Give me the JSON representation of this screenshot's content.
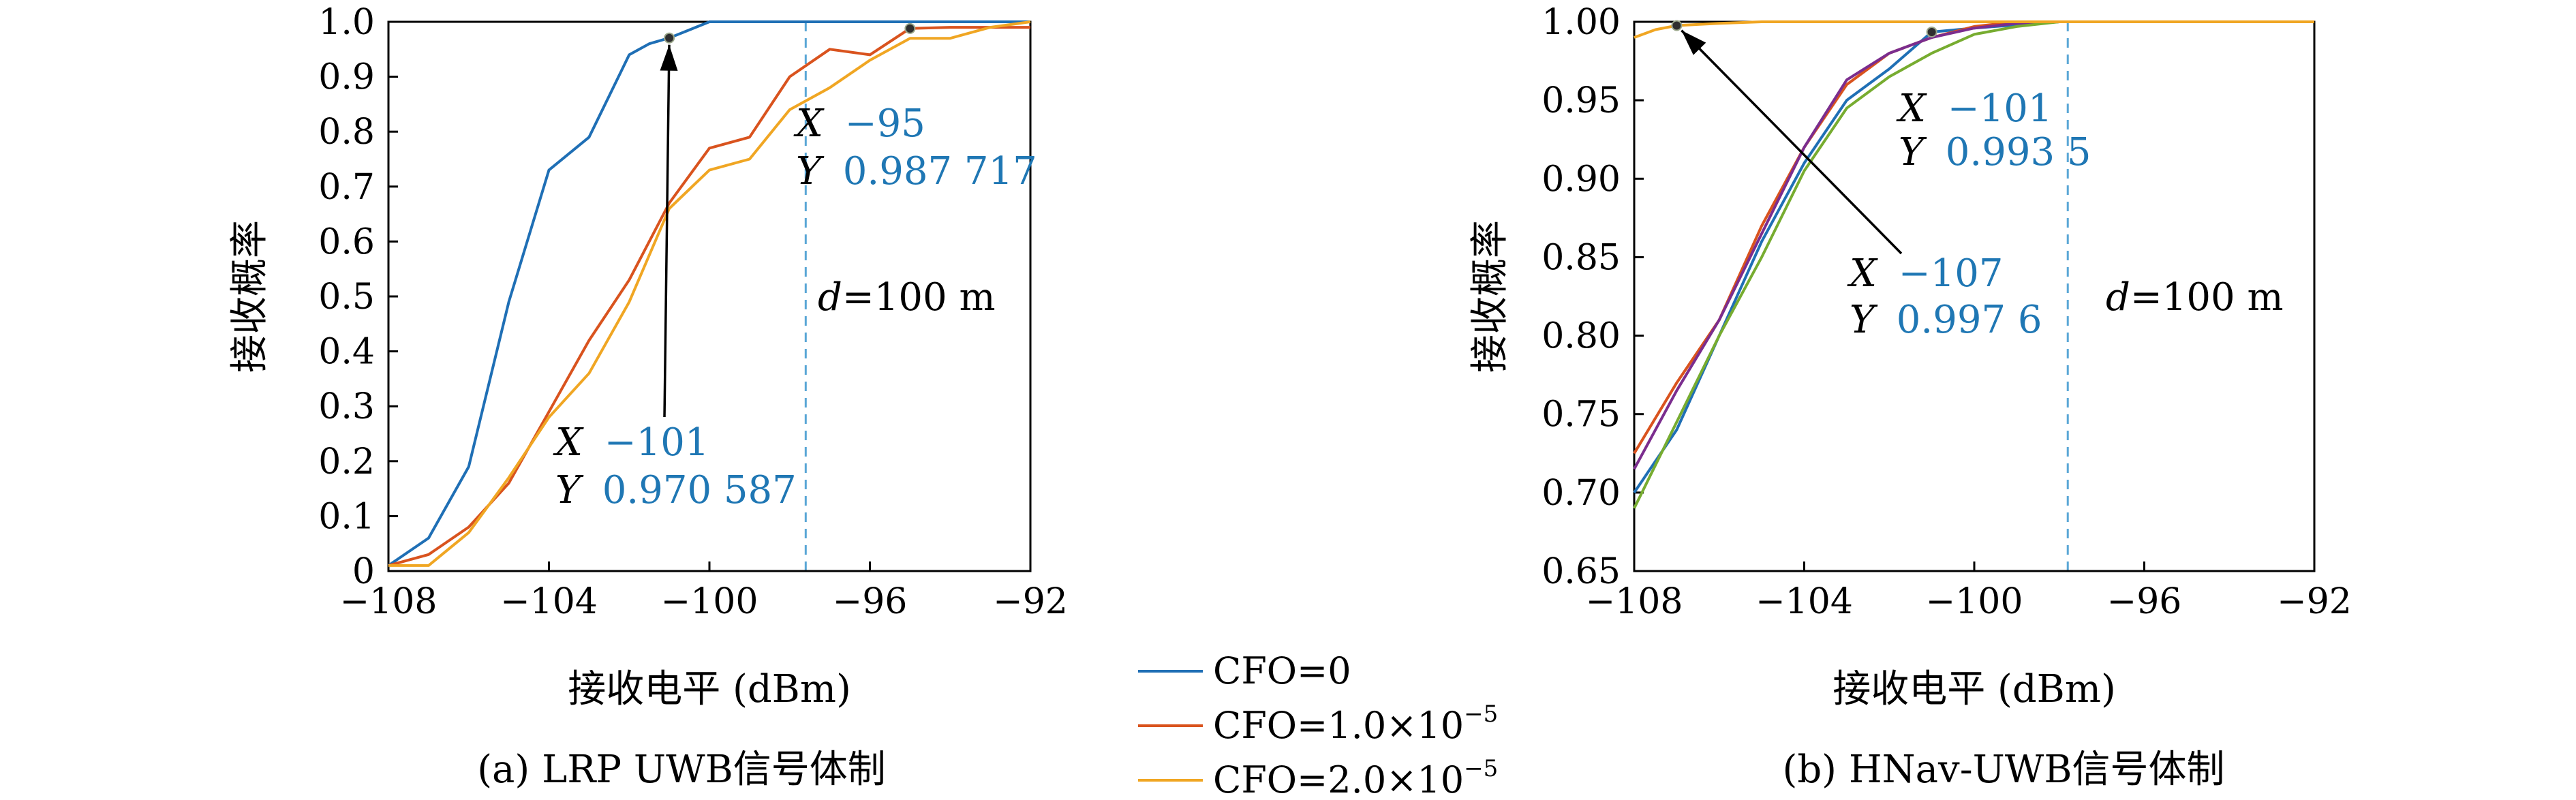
{
  "legend": [
    {
      "label": "CFO=0",
      "color": "#1f6fb5"
    },
    {
      "label": "CFO=1.0×10",
      "sup": "−5",
      "color": "#d9531e"
    },
    {
      "label": "CFO=2.0×10",
      "sup": "−5",
      "color": "#f0a623"
    }
  ],
  "chart_data": [
    {
      "type": "line",
      "caption": "(a) LRP UWB信号体制",
      "xlabel": "接收电平 (dBm)",
      "ylabel": "接收概率",
      "xlim": [
        -108,
        -92
      ],
      "ylim": [
        0,
        1.0
      ],
      "xticks": [
        -108,
        -104,
        -100,
        -96,
        -92
      ],
      "xtick_labels": [
        "−108",
        "−104",
        "−100",
        "−96",
        "−92"
      ],
      "yticks": [
        0,
        0.1,
        0.2,
        0.3,
        0.4,
        0.5,
        0.6,
        0.7,
        0.8,
        0.9,
        1.0
      ],
      "ytick_labels": [
        "0",
        "0.1",
        "0.2",
        "0.3",
        "0.4",
        "0.5",
        "0.6",
        "0.7",
        "0.8",
        "0.9",
        "1.0"
      ],
      "vline_x": -97.6,
      "series": [
        {
          "color": "#1f6fb5",
          "x": [
            -108,
            -107,
            -106,
            -105,
            -104,
            -103,
            -102,
            -101.5,
            -101,
            -100,
            -99,
            -98,
            -97,
            -96,
            -95,
            -94,
            -93,
            -92
          ],
          "y": [
            0.01,
            0.06,
            0.19,
            0.49,
            0.73,
            0.79,
            0.94,
            0.96,
            0.9706,
            1.0,
            1.0,
            1.0,
            1.0,
            1.0,
            1.0,
            1.0,
            1.0,
            1.0
          ]
        },
        {
          "color": "#d9531e",
          "x": [
            -108,
            -107,
            -106,
            -105,
            -104,
            -103,
            -102,
            -101,
            -100,
            -99,
            -98,
            -97,
            -96,
            -95,
            -94,
            -93,
            -92
          ],
          "y": [
            0.01,
            0.03,
            0.08,
            0.16,
            0.29,
            0.42,
            0.53,
            0.67,
            0.77,
            0.79,
            0.9,
            0.95,
            0.94,
            0.988,
            0.99,
            0.99,
            0.99
          ]
        },
        {
          "color": "#f0a623",
          "x": [
            -108,
            -107,
            -106,
            -105,
            -104,
            -103,
            -102,
            -101,
            -100,
            -99,
            -98,
            -97,
            -96,
            -95,
            -94,
            -93,
            -92
          ],
          "y": [
            0.01,
            0.01,
            0.07,
            0.17,
            0.28,
            0.36,
            0.49,
            0.66,
            0.73,
            0.75,
            0.84,
            0.88,
            0.93,
            0.97,
            0.97,
            0.99,
            1.0
          ]
        }
      ],
      "markers": [
        {
          "x": -101,
          "y": 0.970587
        },
        {
          "x": -95,
          "y": 0.987717
        }
      ],
      "annotations": [
        {
          "x_key": "X",
          "x_val": "−101",
          "y_key": "Y",
          "y_val": "0.970 587"
        },
        {
          "x_key": "X",
          "x_val": "−95",
          "y_key": "Y",
          "y_val": "0.987 717"
        }
      ],
      "distance_label": {
        "var": "d",
        "rest": "=100 m"
      }
    },
    {
      "type": "line",
      "caption": "(b) HNav-UWB信号体制",
      "xlabel": "接收电平 (dBm)",
      "ylabel": "接收概率",
      "xlim": [
        -108,
        -92
      ],
      "ylim": [
        0.65,
        1.0
      ],
      "xticks": [
        -108,
        -104,
        -100,
        -96,
        -92
      ],
      "xtick_labels": [
        "−108",
        "−104",
        "−100",
        "−96",
        "−92"
      ],
      "yticks": [
        0.65,
        0.7,
        0.75,
        0.8,
        0.85,
        0.9,
        0.95,
        1.0
      ],
      "ytick_labels": [
        "0.65",
        "0.70",
        "0.75",
        "0.80",
        "0.85",
        "0.90",
        "0.95",
        "1.00"
      ],
      "vline_x": -97.8,
      "series": [
        {
          "color": "#1f6fb5",
          "x": [
            -108,
            -107,
            -106,
            -105,
            -104,
            -103,
            -102,
            -101,
            -100,
            -99,
            -98,
            -97,
            -96,
            -95,
            -94,
            -93,
            -92
          ],
          "y": [
            0.7,
            0.74,
            0.8,
            0.86,
            0.91,
            0.95,
            0.97,
            0.9935,
            0.996,
            0.998,
            1.0,
            1.0,
            1.0,
            1.0,
            1.0,
            1.0,
            1.0
          ]
        },
        {
          "color": "#d9531e",
          "x": [
            -108,
            -107,
            -106,
            -105,
            -104,
            -103,
            -102,
            -101,
            -100,
            -99,
            -98,
            -97,
            -96,
            -95,
            -94,
            -93,
            -92
          ],
          "y": [
            0.725,
            0.77,
            0.81,
            0.87,
            0.92,
            0.96,
            0.98,
            0.99,
            0.997,
            1.0,
            1.0,
            1.0,
            1.0,
            1.0,
            1.0,
            1.0,
            1.0
          ]
        },
        {
          "color": "#7b2d8e",
          "x": [
            -108,
            -107,
            -106,
            -105,
            -104,
            -103,
            -102,
            -101,
            -100,
            -99,
            -98,
            -97,
            -96,
            -95,
            -94,
            -93,
            -92
          ],
          "y": [
            0.715,
            0.765,
            0.81,
            0.865,
            0.92,
            0.963,
            0.98,
            0.99,
            0.996,
            0.999,
            1.0,
            1.0,
            1.0,
            1.0,
            1.0,
            1.0,
            1.0
          ]
        },
        {
          "color": "#77ac30",
          "x": [
            -108,
            -107,
            -106,
            -105,
            -104,
            -103,
            -102,
            -101,
            -100,
            -99,
            -98,
            -97,
            -96,
            -95,
            -94,
            -93,
            -92
          ],
          "y": [
            0.69,
            0.745,
            0.8,
            0.85,
            0.905,
            0.945,
            0.965,
            0.98,
            0.992,
            0.997,
            1.0,
            1.0,
            1.0,
            1.0,
            1.0,
            1.0,
            1.0
          ]
        },
        {
          "color": "#f0a623",
          "x": [
            -108,
            -107.5,
            -107,
            -106,
            -105,
            -104,
            -103,
            -102,
            -101,
            -100,
            -99,
            -98,
            -97,
            -96,
            -95,
            -94,
            -93,
            -92
          ],
          "y": [
            0.99,
            0.995,
            0.9976,
            0.999,
            1.0,
            1.0,
            1.0,
            1.0,
            1.0,
            1.0,
            1.0,
            1.0,
            1.0,
            1.0,
            1.0,
            1.0,
            1.0,
            1.0
          ]
        }
      ],
      "markers": [
        {
          "x": -101,
          "y": 0.9935
        },
        {
          "x": -107,
          "y": 0.9976
        }
      ],
      "annotations": [
        {
          "x_key": "X",
          "x_val": "−101",
          "y_key": "Y",
          "y_val": "0.993 5"
        },
        {
          "x_key": "X",
          "x_val": "−107",
          "y_key": "Y",
          "y_val": "0.997 6"
        }
      ],
      "distance_label": {
        "var": "d",
        "rest": "=100 m"
      }
    }
  ]
}
